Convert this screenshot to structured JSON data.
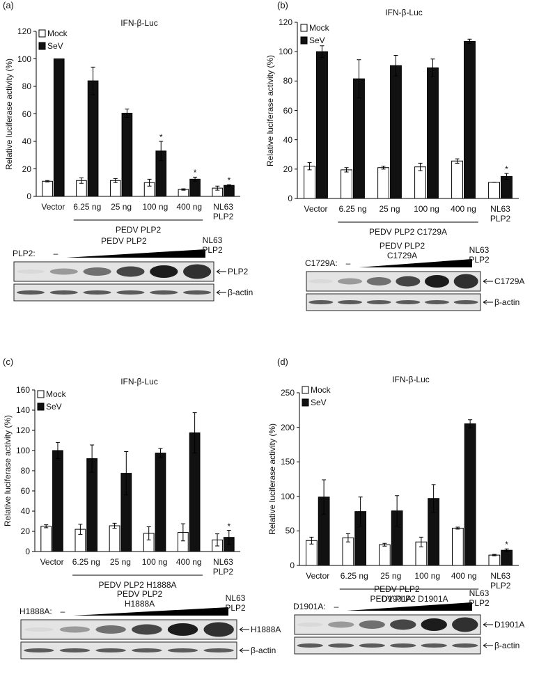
{
  "chart_data": [
    {
      "type": "bar",
      "panel_label": "(a)",
      "title": "IFN-β-Luc",
      "y_label": "Relative luciferase activity (%)",
      "categories": [
        "Vector",
        "6.25 ng",
        "25 ng",
        "100 ng",
        "400 ng",
        "NL63\nPLP2"
      ],
      "group_label": "PEDV  PLP2",
      "series": [
        {
          "name": "Mock",
          "color": "#ffffff",
          "values": [
            11,
            11.5,
            11.5,
            10,
            5,
            6
          ],
          "errors": [
            0.5,
            2,
            1.5,
            2.5,
            0.5,
            1.5
          ]
        },
        {
          "name": "SeV",
          "color": "#111111",
          "values": [
            100,
            84,
            60.5,
            33,
            12.5,
            8
          ],
          "errors": [
            0,
            10,
            3,
            7,
            1.5,
            0.5
          ],
          "significance": [
            null,
            null,
            null,
            "*",
            "*",
            "*"
          ]
        }
      ],
      "ylim": [
        0,
        120
      ],
      "yticks": [
        0,
        20,
        40,
        60,
        80,
        100,
        120
      ],
      "blot": {
        "treatment_label": "PLP2:",
        "control": "–",
        "titration_label": "PEDV  PLP2",
        "last_lane": "NL63\nPLP2",
        "bands": [
          "PLP2",
          "β-actin"
        ]
      }
    },
    {
      "type": "bar",
      "panel_label": "(b)",
      "title": "IFN-β-Luc",
      "y_label": "Relative luciferase activity (%)",
      "categories": [
        "Vector",
        "6.25 ng",
        "25 ng",
        "100 ng",
        "400 ng",
        "NL63\nPLP2"
      ],
      "group_label": "PEDV  PLP2 C1729A",
      "series": [
        {
          "name": "Mock",
          "color": "#ffffff",
          "values": [
            22,
            19.5,
            21,
            21.5,
            25.5,
            11
          ],
          "errors": [
            2.5,
            1.5,
            1,
            2.5,
            1.5,
            0
          ]
        },
        {
          "name": "SeV",
          "color": "#111111",
          "values": [
            100,
            81.5,
            90.5,
            89,
            107,
            15
          ],
          "errors": [
            4,
            13,
            7,
            6,
            1.5,
            2
          ],
          "significance": [
            null,
            null,
            null,
            null,
            null,
            "*"
          ]
        }
      ],
      "ylim": [
        0,
        120
      ],
      "yticks": [
        0,
        20,
        40,
        60,
        80,
        100,
        120
      ],
      "blot": {
        "treatment_label": "C1729A:",
        "control": "–",
        "titration_label": "PEDV  PLP2\nC1729A",
        "last_lane": "NL63\nPLP2",
        "bands": [
          "C1729A",
          "β-actin"
        ]
      }
    },
    {
      "type": "bar",
      "panel_label": "(c)",
      "title": "IFN-β-Luc",
      "y_label": "Relative luciferase activity (%)",
      "categories": [
        "Vector",
        "6.25 ng",
        "25 ng",
        "100 ng",
        "400 ng",
        "NL63\nPLP2"
      ],
      "group_label": "PEDV  PLP2 H1888A",
      "series": [
        {
          "name": "Mock",
          "color": "#ffffff",
          "values": [
            25,
            22,
            25.5,
            18,
            19,
            11.5
          ],
          "errors": [
            1.5,
            5,
            2.5,
            6.5,
            8.5,
            6
          ]
        },
        {
          "name": "SeV",
          "color": "#111111",
          "values": [
            100,
            92,
            77.5,
            97.5,
            117.5,
            14
          ],
          "errors": [
            8,
            13.5,
            21.5,
            4.5,
            20,
            7
          ],
          "significance": [
            null,
            null,
            null,
            null,
            null,
            "*"
          ]
        }
      ],
      "ylim": [
        0,
        160
      ],
      "yticks": [
        0,
        20,
        40,
        60,
        80,
        100,
        120,
        140,
        160
      ],
      "blot": {
        "treatment_label": "H1888A:",
        "control": "–",
        "titration_label": "PEDV  PLP2\nH1888A",
        "last_lane": "NL63\nPLP2",
        "bands": [
          "H1888A",
          "β-actin"
        ]
      }
    },
    {
      "type": "bar",
      "panel_label": "(d)",
      "title": "IFN-β-Luc",
      "y_label": "Relative luciferase activity (%)",
      "categories": [
        "Vector",
        "6.25 ng",
        "25 ng",
        "100 ng",
        "400 ng",
        "NL63\nPLP2"
      ],
      "group_label": "PEDV  PLP2 D1901A",
      "series": [
        {
          "name": "Mock",
          "color": "#ffffff",
          "values": [
            36,
            40,
            30,
            34,
            54,
            15
          ],
          "errors": [
            5,
            6,
            2,
            7,
            1.5,
            1
          ]
        },
        {
          "name": "SeV",
          "color": "#111111",
          "values": [
            99,
            78,
            79,
            97,
            205,
            22
          ],
          "errors": [
            25,
            21,
            22,
            20,
            6,
            2
          ],
          "significance": [
            null,
            null,
            null,
            null,
            null,
            "*"
          ]
        }
      ],
      "ylim": [
        0,
        250
      ],
      "yticks": [
        0,
        50,
        100,
        150,
        200,
        250
      ],
      "blot": {
        "treatment_label": "D1901A:",
        "control": "–",
        "titration_label": "PEDV  PLP2\nD1901A",
        "last_lane": "NL63\nPLP2",
        "bands": [
          "D1901A",
          "β-actin"
        ]
      }
    }
  ]
}
